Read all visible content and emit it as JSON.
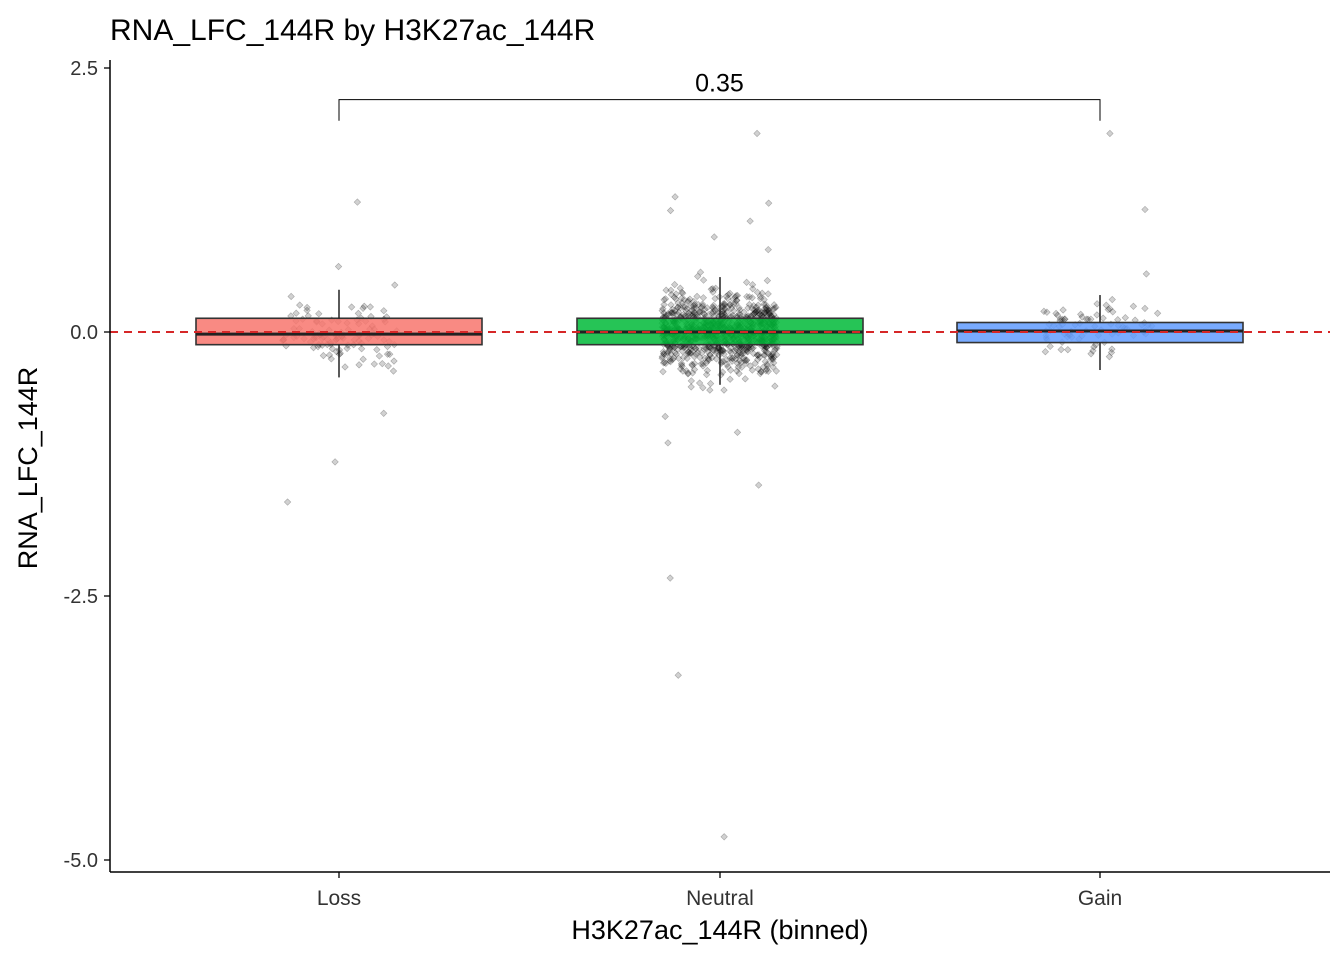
{
  "chart_data": {
    "type": "boxplot",
    "title": "RNA_LFC_144R by H3K27ac_144R",
    "xlabel": "H3K27ac_144R (binned)",
    "ylabel": "RNA_LFC_144R",
    "ylim": [
      -5.1,
      2.55
    ],
    "yticks": [
      2.5,
      0.0,
      -2.5,
      -5.0
    ],
    "ytick_labels": [
      "2.5",
      "0.0",
      "-2.5",
      "-5.0"
    ],
    "categories": [
      "Loss",
      "Neutral",
      "Gain"
    ],
    "reference_line": {
      "y": 0.0,
      "color": "#d62728",
      "style": "dashed"
    },
    "grid": false,
    "legend": "none",
    "comparison": {
      "from": "Loss",
      "to": "Gain",
      "label": "0.35",
      "y": 2.2,
      "tick_bottom": 2.0
    },
    "boxes": [
      {
        "name": "Loss",
        "color": "#f8766d",
        "q1": -0.12,
        "median": -0.02,
        "q3": 0.13,
        "whisker_low": -0.43,
        "whisker_high": 0.4,
        "n_points": 110,
        "outliers": [
          1.23,
          0.62,
          -0.77,
          -1.23,
          -1.61
        ]
      },
      {
        "name": "Neutral",
        "color": "#00ba38",
        "q1": -0.12,
        "median": 0.0,
        "q3": 0.13,
        "whisker_low": -0.5,
        "whisker_high": 0.52,
        "n_points": 900,
        "outliers": [
          1.88,
          1.28,
          1.22,
          1.15,
          1.05,
          0.9,
          0.78,
          -0.8,
          -0.95,
          -1.05,
          -1.45,
          -2.33,
          -3.25,
          -4.78
        ]
      },
      {
        "name": "Gain",
        "color": "#619cff",
        "q1": -0.1,
        "median": 0.01,
        "q3": 0.09,
        "whisker_low": -0.36,
        "whisker_high": 0.35,
        "n_points": 80,
        "outliers": [
          1.88,
          1.16,
          0.55
        ]
      }
    ]
  }
}
